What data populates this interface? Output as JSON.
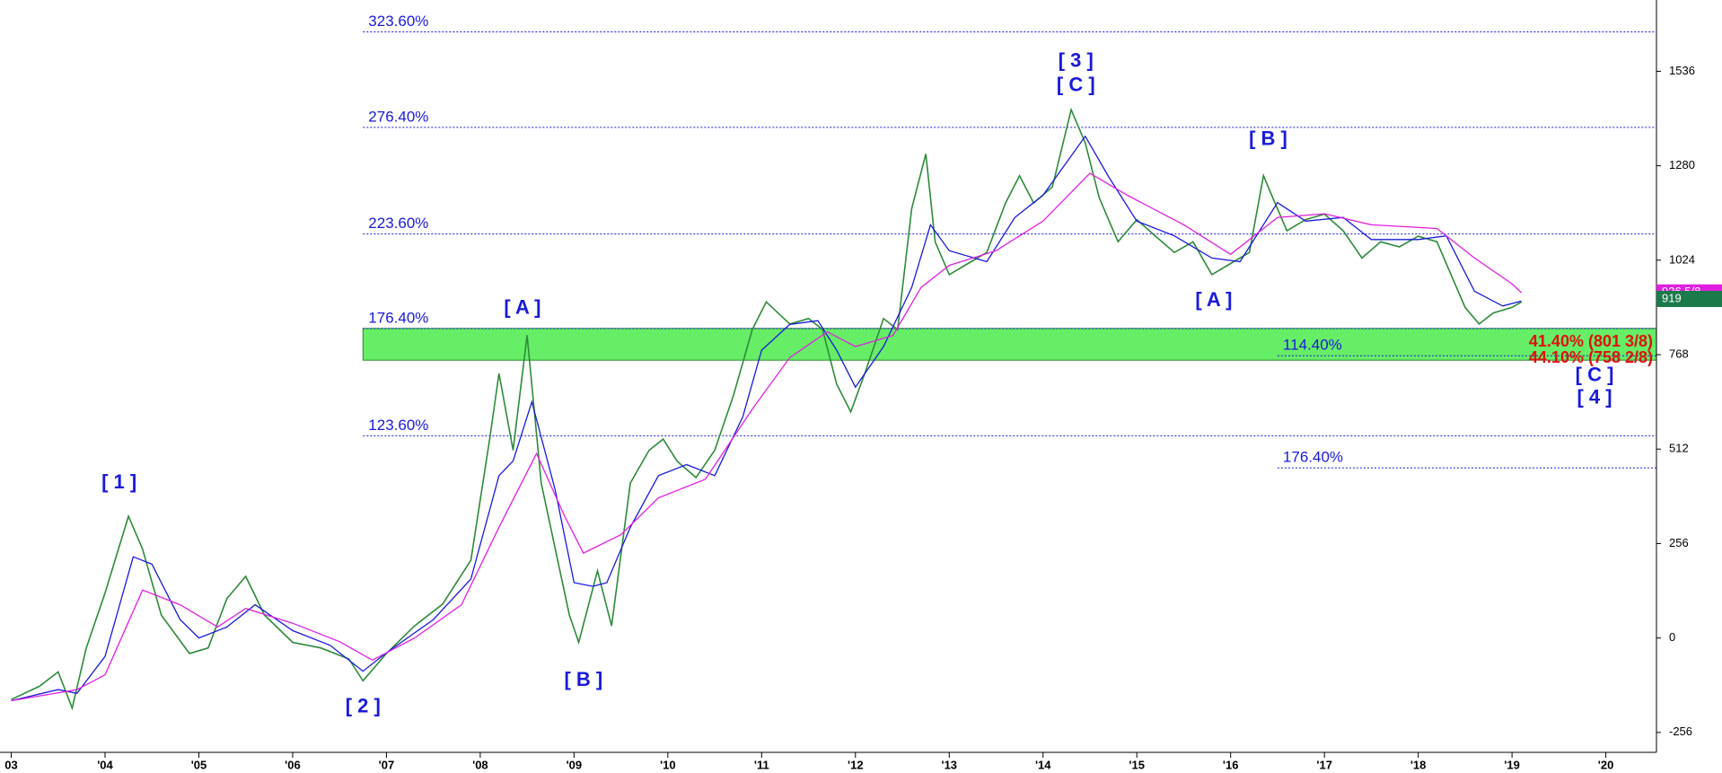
{
  "chart_data": {
    "type": "line",
    "xlim": [
      2002.88,
      2020.54
    ],
    "ylim": [
      -310,
      1705
    ],
    "xticks": [
      {
        "value": 2003,
        "label": "03"
      },
      {
        "value": 2004,
        "label": "'04"
      },
      {
        "value": 2005,
        "label": "'05"
      },
      {
        "value": 2006,
        "label": "'06"
      },
      {
        "value": 2007,
        "label": "'07"
      },
      {
        "value": 2008,
        "label": "'08"
      },
      {
        "value": 2009,
        "label": "'09"
      },
      {
        "value": 2010,
        "label": "'10"
      },
      {
        "value": 2011,
        "label": "'11"
      },
      {
        "value": 2012,
        "label": "'12"
      },
      {
        "value": 2013,
        "label": "'13"
      },
      {
        "value": 2014,
        "label": "'14"
      },
      {
        "value": 2015,
        "label": "'15"
      },
      {
        "value": 2016,
        "label": "'16"
      },
      {
        "value": 2017,
        "label": "'17"
      },
      {
        "value": 2018,
        "label": "'18"
      },
      {
        "value": 2019,
        "label": "'19"
      },
      {
        "value": 2020,
        "label": "'20"
      }
    ],
    "yticks": [
      -256,
      0,
      256,
      512,
      768,
      1024,
      1280,
      1536
    ],
    "series": [
      {
        "color": "#2e8b3a",
        "x": [
          2003.0,
          2003.3,
          2003.5,
          2003.65,
          2003.8,
          2004.0,
          2004.25,
          2004.4,
          2004.6,
          2004.9,
          2005.1,
          2005.3,
          2005.5,
          2005.7,
          2006.0,
          2006.3,
          2006.6,
          2006.75,
          2007.0,
          2007.3,
          2007.6,
          2007.9,
          2008.1,
          2008.2,
          2008.35,
          2008.5,
          2008.65,
          2008.8,
          2008.95,
          2009.05,
          2009.25,
          2009.4,
          2009.6,
          2009.8,
          2009.95,
          2010.1,
          2010.3,
          2010.5,
          2010.7,
          2010.9,
          2011.05,
          2011.3,
          2011.5,
          2011.65,
          2011.8,
          2011.95,
          2012.1,
          2012.3,
          2012.45,
          2012.6,
          2012.75,
          2012.85,
          2013.0,
          2013.2,
          2013.4,
          2013.6,
          2013.75,
          2013.9,
          2014.1,
          2014.3,
          2014.45,
          2014.6,
          2014.8,
          2015.0,
          2015.2,
          2015.4,
          2015.6,
          2015.8,
          2016.0,
          2016.2,
          2016.35,
          2016.45,
          2016.6,
          2016.8,
          2017.0,
          2017.2,
          2017.4,
          2017.6,
          2017.8,
          2018.0,
          2018.2,
          2018.35,
          2018.5,
          2018.65,
          2018.8,
          2019.0,
          2019.1
        ],
        "values": [
          -167,
          -131,
          -92,
          -190,
          -27,
          122,
          330,
          241,
          62,
          -42,
          -27,
          107,
          167,
          62,
          -12,
          -27,
          -57,
          -116,
          -42,
          33,
          92,
          211,
          539,
          717,
          509,
          821,
          420,
          241,
          62,
          -12,
          182,
          33,
          420,
          509,
          539,
          479,
          435,
          509,
          658,
          836,
          911,
          851,
          866,
          836,
          688,
          613,
          717,
          866,
          836,
          1164,
          1312,
          1074,
          985,
          1015,
          1045,
          1179,
          1253,
          1179,
          1223,
          1432,
          1342,
          1193,
          1074,
          1134,
          1089,
          1045,
          1074,
          985,
          1015,
          1045,
          1253,
          1193,
          1104,
          1134,
          1149,
          1104,
          1030,
          1074,
          1060,
          1089,
          1074,
          985,
          896,
          851,
          881,
          896,
          911
        ]
      },
      {
        "color": "#1a1adb",
        "x": [
          2003.0,
          2003.5,
          2003.7,
          2004.0,
          2004.3,
          2004.5,
          2004.8,
          2005.0,
          2005.3,
          2005.6,
          2006.0,
          2006.4,
          2006.75,
          2007.0,
          2007.5,
          2007.9,
          2008.2,
          2008.35,
          2008.55,
          2008.8,
          2009.0,
          2009.2,
          2009.35,
          2009.6,
          2009.9,
          2010.2,
          2010.5,
          2010.8,
          2011.0,
          2011.3,
          2011.6,
          2011.8,
          2012.0,
          2012.3,
          2012.6,
          2012.8,
          2013.0,
          2013.4,
          2013.7,
          2014.0,
          2014.45,
          2014.7,
          2015.0,
          2015.4,
          2015.8,
          2016.1,
          2016.5,
          2016.8,
          2017.2,
          2017.5,
          2018.0,
          2018.3,
          2018.6,
          2018.9,
          2019.1
        ],
        "values": [
          -170,
          -140,
          -150,
          -50,
          220,
          200,
          50,
          0,
          30,
          90,
          20,
          -20,
          -90,
          -40,
          50,
          160,
          440,
          480,
          640,
          400,
          150,
          140,
          150,
          300,
          440,
          470,
          440,
          600,
          780,
          850,
          860,
          780,
          680,
          790,
          950,
          1120,
          1050,
          1020,
          1140,
          1200,
          1360,
          1250,
          1130,
          1090,
          1030,
          1020,
          1180,
          1130,
          1140,
          1080,
          1080,
          1090,
          940,
          900,
          913
        ]
      },
      {
        "color": "#e020e0",
        "x": [
          2003.0,
          2003.7,
          2004.0,
          2004.4,
          2004.8,
          2005.2,
          2005.5,
          2006.0,
          2006.5,
          2006.85,
          2007.3,
          2007.8,
          2008.2,
          2008.6,
          2008.9,
          2009.1,
          2009.5,
          2009.9,
          2010.4,
          2010.9,
          2011.3,
          2011.7,
          2012.0,
          2012.4,
          2012.7,
          2013.0,
          2013.5,
          2014.0,
          2014.5,
          2014.9,
          2015.5,
          2016.0,
          2016.5,
          2017.0,
          2017.5,
          2018.2,
          2018.6,
          2019.0,
          2019.1
        ],
        "values": [
          -170,
          -140,
          -100,
          130,
          90,
          30,
          80,
          40,
          -10,
          -60,
          0,
          90,
          300,
          500,
          330,
          230,
          280,
          380,
          430,
          620,
          760,
          830,
          790,
          820,
          950,
          1010,
          1050,
          1130,
          1260,
          1200,
          1120,
          1040,
          1140,
          1150,
          1120,
          1110,
          1030,
          960,
          936
        ]
      }
    ],
    "levels": [
      {
        "value": 1643,
        "label": "323.60%",
        "x_start": 2006.75
      },
      {
        "value": 1384,
        "label": "276.40%",
        "x_start": 2006.75
      },
      {
        "value": 1095,
        "label": "223.60%",
        "x_start": 2006.75
      },
      {
        "value": 839,
        "label": "176.40%",
        "x_start": 2006.75
      },
      {
        "value": 548,
        "label": "123.60%",
        "x_start": 2006.75
      },
      {
        "value": 765,
        "label": "114.40%",
        "x_start": 2016.5
      },
      {
        "value": 461,
        "label": "176.40%",
        "x_start": 2016.5
      }
    ],
    "zone": {
      "from": 753,
      "to": 839,
      "x_start": 2006.75,
      "color": "#66ee66"
    },
    "zone_labels": [
      {
        "value": 801.375,
        "label": "41.40% (801 3/8)"
      },
      {
        "value": 758.25,
        "label": "44.10% (758 2/8)"
      }
    ],
    "price_labels": [
      {
        "value": 936.625,
        "label": "936 5/8",
        "color": "#e020e0"
      },
      {
        "value": 919,
        "label": "919",
        "color": "#1a7a4a"
      }
    ],
    "annotations": [
      {
        "text": "[ 1 ]",
        "x": 2004.15,
        "y": 420
      },
      {
        "text": "[ 2 ]",
        "x": 2006.75,
        "y": -187
      },
      {
        "text": "[ A ]",
        "x": 2008.45,
        "y": 893
      },
      {
        "text": "[ B ]",
        "x": 2009.1,
        "y": -116
      },
      {
        "text": "[ 3 ]",
        "x": 2014.35,
        "y": 1562
      },
      {
        "text": "[ C ]",
        "x": 2014.35,
        "y": 1497
      },
      {
        "text": "[ B ]",
        "x": 2016.4,
        "y": 1351
      },
      {
        "text": "[ A ]",
        "x": 2015.82,
        "y": 914
      },
      {
        "text": "[ C ]",
        "x": 2019.88,
        "y": 711
      },
      {
        "text": "[ 4 ]",
        "x": 2019.88,
        "y": 649
      }
    ]
  }
}
